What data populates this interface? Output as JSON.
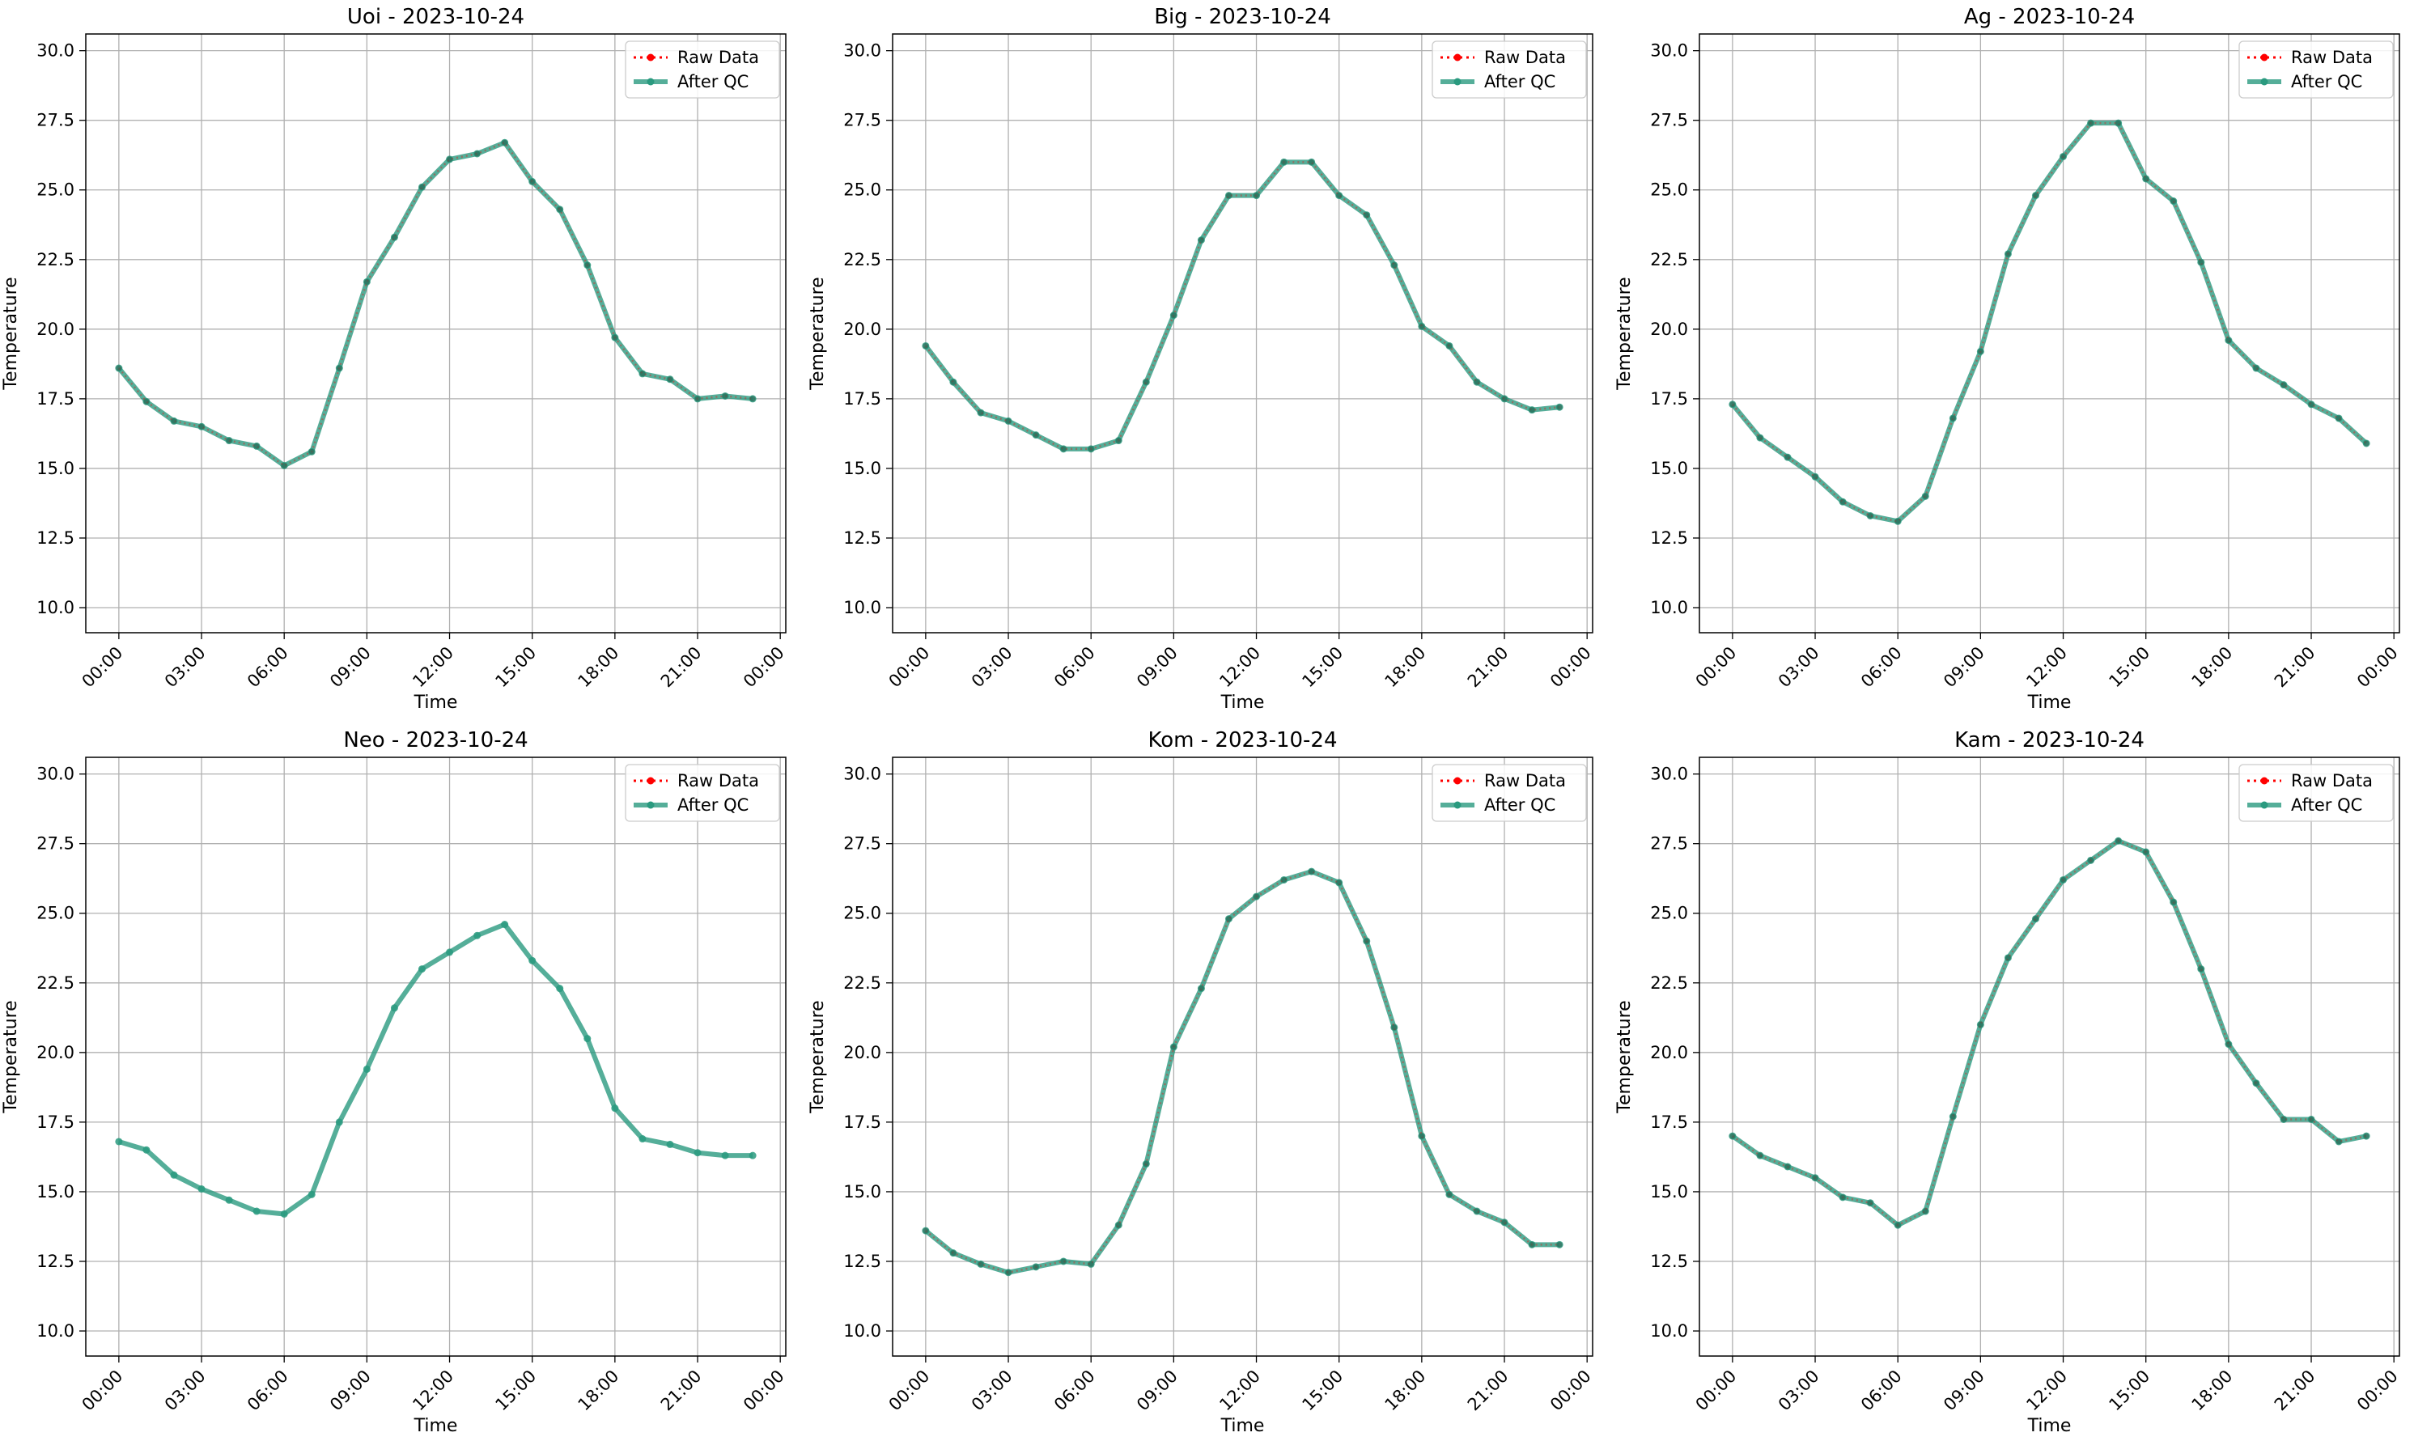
{
  "figure": {
    "legend_labels": {
      "raw": "Raw Data",
      "qc": "After QC"
    },
    "xlabel": "Time",
    "ylabel": "Temperature"
  },
  "colors": {
    "raw": "#ff0000",
    "qc": "#2a9a7f",
    "grid": "#b0b0b0",
    "axes": "#000000"
  },
  "chart_data": [
    {
      "type": "line",
      "title": "Uoi - 2023-10-24",
      "xlabel": "Time",
      "ylabel": "Temperature",
      "x_ticks": [
        "00:00",
        "03:00",
        "06:00",
        "09:00",
        "12:00",
        "15:00",
        "18:00",
        "21:00",
        "00:00"
      ],
      "x_hours": [
        0,
        1,
        2,
        3,
        4,
        5,
        6,
        7,
        8,
        9,
        10,
        11,
        12,
        13,
        14,
        15,
        16,
        17,
        18,
        19,
        20,
        21,
        22,
        23
      ],
      "ylim": [
        9.1,
        30.6
      ],
      "y_ticks": [
        "10.0",
        "12.5",
        "15.0",
        "17.5",
        "20.0",
        "22.5",
        "25.0",
        "27.5",
        "30.0"
      ],
      "grid": true,
      "legend": "top-right",
      "series": [
        {
          "name": "Raw Data",
          "values": [
            18.6,
            17.4,
            16.7,
            16.5,
            16.0,
            15.8,
            15.1,
            15.6,
            18.6,
            21.7,
            23.3,
            25.1,
            26.1,
            26.3,
            26.7,
            25.3,
            24.3,
            22.3,
            19.7,
            18.4,
            18.2,
            17.5,
            17.6,
            17.5
          ]
        },
        {
          "name": "After QC",
          "values": [
            18.6,
            17.4,
            16.7,
            16.5,
            16.0,
            15.8,
            15.1,
            15.6,
            18.6,
            21.7,
            23.3,
            25.1,
            26.1,
            26.3,
            26.7,
            25.3,
            24.3,
            22.3,
            19.7,
            18.4,
            18.2,
            17.5,
            17.6,
            17.5
          ]
        }
      ]
    },
    {
      "type": "line",
      "title": "Big - 2023-10-24",
      "xlabel": "Time",
      "ylabel": "Temperature",
      "x_ticks": [
        "00:00",
        "03:00",
        "06:00",
        "09:00",
        "12:00",
        "15:00",
        "18:00",
        "21:00",
        "00:00"
      ],
      "x_hours": [
        0,
        1,
        2,
        3,
        4,
        5,
        6,
        7,
        8,
        9,
        10,
        11,
        12,
        13,
        14,
        15,
        16,
        17,
        18,
        19,
        20,
        21,
        22,
        23
      ],
      "ylim": [
        9.1,
        30.6
      ],
      "y_ticks": [
        "10.0",
        "12.5",
        "15.0",
        "17.5",
        "20.0",
        "22.5",
        "25.0",
        "27.5",
        "30.0"
      ],
      "grid": true,
      "legend": "top-right",
      "series": [
        {
          "name": "Raw Data",
          "values": [
            19.4,
            18.1,
            17.0,
            16.7,
            16.2,
            15.7,
            15.7,
            16.0,
            18.1,
            20.5,
            23.2,
            24.8,
            24.8,
            26.0,
            26.0,
            24.8,
            24.1,
            22.3,
            20.1,
            19.4,
            18.1,
            17.5,
            17.1,
            17.2
          ]
        },
        {
          "name": "After QC",
          "values": [
            19.4,
            18.1,
            17.0,
            16.7,
            16.2,
            15.7,
            15.7,
            16.0,
            18.1,
            20.5,
            23.2,
            24.8,
            24.8,
            26.0,
            26.0,
            24.8,
            24.1,
            22.3,
            20.1,
            19.4,
            18.1,
            17.5,
            17.1,
            17.2
          ]
        }
      ]
    },
    {
      "type": "line",
      "title": "Ag - 2023-10-24",
      "xlabel": "Time",
      "ylabel": "Temperature",
      "x_ticks": [
        "00:00",
        "03:00",
        "06:00",
        "09:00",
        "12:00",
        "15:00",
        "18:00",
        "21:00",
        "00:00"
      ],
      "x_hours": [
        0,
        1,
        2,
        3,
        4,
        5,
        6,
        7,
        8,
        9,
        10,
        11,
        12,
        13,
        14,
        15,
        16,
        17,
        18,
        19,
        20,
        21,
        22,
        23
      ],
      "ylim": [
        9.1,
        30.6
      ],
      "y_ticks": [
        "10.0",
        "12.5",
        "15.0",
        "17.5",
        "20.0",
        "22.5",
        "25.0",
        "27.5",
        "30.0"
      ],
      "grid": true,
      "legend": "top-right",
      "series": [
        {
          "name": "Raw Data",
          "values": [
            17.3,
            16.1,
            15.4,
            14.7,
            13.8,
            13.3,
            13.1,
            14.0,
            16.8,
            19.2,
            22.7,
            24.8,
            26.2,
            27.4,
            27.4,
            25.4,
            24.6,
            22.4,
            19.6,
            18.6,
            18.0,
            17.3,
            16.8,
            15.9
          ]
        },
        {
          "name": "After QC",
          "values": [
            17.3,
            16.1,
            15.4,
            14.7,
            13.8,
            13.3,
            13.1,
            14.0,
            16.8,
            19.2,
            22.7,
            24.8,
            26.2,
            27.4,
            27.4,
            25.4,
            24.6,
            22.4,
            19.6,
            18.6,
            18.0,
            17.3,
            16.8,
            15.9
          ]
        }
      ]
    },
    {
      "type": "line",
      "title": "Neo - 2023-10-24",
      "xlabel": "Time",
      "ylabel": "Temperature",
      "x_ticks": [
        "00:00",
        "03:00",
        "06:00",
        "09:00",
        "12:00",
        "15:00",
        "18:00",
        "21:00",
        "00:00"
      ],
      "x_hours": [
        0,
        1,
        2,
        3,
        4,
        5,
        6,
        7,
        8,
        9,
        10,
        11,
        12,
        13,
        14,
        15,
        16,
        17,
        18,
        19,
        20,
        21,
        22,
        23
      ],
      "ylim": [
        9.1,
        30.6
      ],
      "y_ticks": [
        "10.0",
        "12.5",
        "15.0",
        "17.5",
        "20.0",
        "22.5",
        "25.0",
        "27.5",
        "30.0"
      ],
      "grid": true,
      "legend": "top-right",
      "series": [
        {
          "name": "Raw Data",
          "values": [
            null,
            null,
            null,
            null,
            null,
            null,
            null,
            null,
            null,
            null,
            null,
            null,
            null,
            null,
            null,
            null,
            null,
            null,
            null,
            null,
            null,
            null,
            null,
            null
          ]
        },
        {
          "name": "After QC",
          "values": [
            16.8,
            16.5,
            15.6,
            15.1,
            14.7,
            14.3,
            14.2,
            14.9,
            17.5,
            19.4,
            21.6,
            23.0,
            23.6,
            24.2,
            24.6,
            23.3,
            22.3,
            20.5,
            18.0,
            16.9,
            16.7,
            16.4,
            16.3,
            16.3
          ]
        }
      ]
    },
    {
      "type": "line",
      "title": "Kom - 2023-10-24",
      "xlabel": "Time",
      "ylabel": "Temperature",
      "x_ticks": [
        "00:00",
        "03:00",
        "06:00",
        "09:00",
        "12:00",
        "15:00",
        "18:00",
        "21:00",
        "00:00"
      ],
      "x_hours": [
        0,
        1,
        2,
        3,
        4,
        5,
        6,
        7,
        8,
        9,
        10,
        11,
        12,
        13,
        14,
        15,
        16,
        17,
        18,
        19,
        20,
        21,
        22,
        23
      ],
      "ylim": [
        9.1,
        30.6
      ],
      "y_ticks": [
        "10.0",
        "12.5",
        "15.0",
        "17.5",
        "20.0",
        "22.5",
        "25.0",
        "27.5",
        "30.0"
      ],
      "grid": true,
      "legend": "top-right",
      "series": [
        {
          "name": "Raw Data",
          "values": [
            13.6,
            12.8,
            12.4,
            12.1,
            12.3,
            12.5,
            12.4,
            13.8,
            16.0,
            20.2,
            22.3,
            24.8,
            25.6,
            26.2,
            26.5,
            26.1,
            24.0,
            20.9,
            17.0,
            14.9,
            14.3,
            13.9,
            13.1,
            13.1
          ]
        },
        {
          "name": "After QC",
          "values": [
            13.6,
            12.8,
            12.4,
            12.1,
            12.3,
            12.5,
            12.4,
            13.8,
            16.0,
            20.2,
            22.3,
            24.8,
            25.6,
            26.2,
            26.5,
            26.1,
            24.0,
            20.9,
            17.0,
            14.9,
            14.3,
            13.9,
            13.1,
            13.1
          ]
        }
      ]
    },
    {
      "type": "line",
      "title": "Kam - 2023-10-24",
      "xlabel": "Time",
      "ylabel": "Temperature",
      "x_ticks": [
        "00:00",
        "03:00",
        "06:00",
        "09:00",
        "12:00",
        "15:00",
        "18:00",
        "21:00",
        "00:00"
      ],
      "x_hours": [
        0,
        1,
        2,
        3,
        4,
        5,
        6,
        7,
        8,
        9,
        10,
        11,
        12,
        13,
        14,
        15,
        16,
        17,
        18,
        19,
        20,
        21,
        22,
        23
      ],
      "ylim": [
        9.1,
        30.6
      ],
      "y_ticks": [
        "10.0",
        "12.5",
        "15.0",
        "17.5",
        "20.0",
        "22.5",
        "25.0",
        "27.5",
        "30.0"
      ],
      "grid": true,
      "legend": "top-right",
      "series": [
        {
          "name": "Raw Data",
          "values": [
            17.0,
            16.3,
            15.9,
            15.5,
            14.8,
            14.6,
            13.8,
            14.3,
            17.7,
            21.0,
            23.4,
            24.8,
            26.2,
            26.9,
            27.6,
            27.2,
            25.4,
            23.0,
            20.3,
            18.9,
            17.6,
            17.6,
            16.8,
            17.0
          ]
        },
        {
          "name": "After QC",
          "values": [
            17.0,
            16.3,
            15.9,
            15.5,
            14.8,
            14.6,
            13.8,
            14.3,
            17.7,
            21.0,
            23.4,
            24.8,
            26.2,
            26.9,
            27.6,
            27.2,
            25.4,
            23.0,
            20.3,
            18.9,
            17.6,
            17.6,
            16.8,
            17.0
          ]
        }
      ]
    }
  ]
}
